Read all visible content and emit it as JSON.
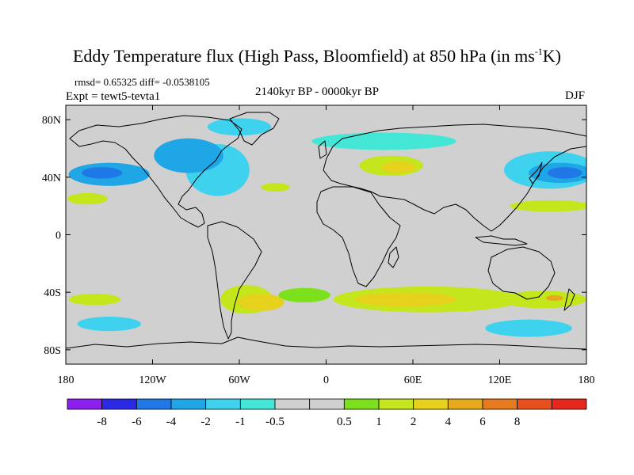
{
  "header": {
    "title_main": "Eddy Temperature flux (High Pass, Bloomfield) at 850 hPa (in ms",
    "title_sup": "-1",
    "title_end": "K)",
    "stats": "rmsd= 0.65325 diff= -0.0538105",
    "experiment": "Expt = tewt5-tevta1",
    "period": "2140kyr BP - 0000kyr BP",
    "season": "DJF"
  },
  "axes": {
    "lat_labels": [
      "80N",
      "40N",
      "0",
      "40S",
      "80S"
    ],
    "lat_values": [
      80,
      40,
      0,
      -40,
      -80
    ],
    "lon_labels": [
      "180",
      "120W",
      "60W",
      "0",
      "60E",
      "120E",
      "180"
    ],
    "lon_values": [
      -180,
      -120,
      -60,
      0,
      60,
      120,
      180
    ]
  },
  "colorbar": {
    "colors": [
      "#8c1ff0",
      "#2a2ae6",
      "#1f78e6",
      "#1fa6e6",
      "#3ed2ee",
      "#44e6d6",
      "#d0d0d0",
      "#d0d0d0",
      "#7ce11c",
      "#c3e61c",
      "#e6d21c",
      "#e6aa1c",
      "#e67a1c",
      "#e6501c",
      "#e6281c"
    ],
    "labels": [
      "-8",
      "-6",
      "-4",
      "-2",
      "-1",
      "-0.5",
      "0.5",
      "1",
      "2",
      "4",
      "6",
      "8"
    ],
    "neutral_color": "#d0d0d0"
  },
  "field_regions": [
    {
      "level": 0.5,
      "lon": -15,
      "lat": -42,
      "rlon": 18,
      "rlat": 5
    },
    {
      "level": -2,
      "lon": -150,
      "lat": 42,
      "rlon": 28,
      "rlat": 8
    },
    {
      "level": -4,
      "lon": -155,
      "lat": 43,
      "rlon": 14,
      "rlat": 4
    },
    {
      "level": 1,
      "lon": -165,
      "lat": 25,
      "rlon": 14,
      "rlat": 4
    },
    {
      "level": -1,
      "lon": -75,
      "lat": 45,
      "rlon": 22,
      "rlat": 18
    },
    {
      "level": -2,
      "lon": -95,
      "lat": 55,
      "rlon": 24,
      "rlat": 12
    },
    {
      "level": -1,
      "lon": -60,
      "lat": 75,
      "rlon": 22,
      "rlat": 6
    },
    {
      "level": 1,
      "lon": -35,
      "lat": 33,
      "rlon": 10,
      "rlat": 3
    },
    {
      "level": -0.5,
      "lon": 40,
      "lat": 65,
      "rlon": 50,
      "rlat": 6
    },
    {
      "level": 1,
      "lon": 45,
      "lat": 48,
      "rlon": 22,
      "rlat": 7
    },
    {
      "level": 2,
      "lon": 50,
      "lat": 47,
      "rlon": 12,
      "rlat": 4
    },
    {
      "level": -1,
      "lon": 155,
      "lat": 45,
      "rlon": 32,
      "rlat": 13
    },
    {
      "level": -2,
      "lon": 162,
      "lat": 43,
      "rlon": 22,
      "rlat": 7
    },
    {
      "level": -4,
      "lon": 165,
      "lat": 43,
      "rlon": 12,
      "rlat": 4
    },
    {
      "level": 1,
      "lon": 155,
      "lat": 20,
      "rlon": 28,
      "rlat": 4
    },
    {
      "level": 1,
      "lon": -55,
      "lat": -45,
      "rlon": 18,
      "rlat": 10
    },
    {
      "level": 2,
      "lon": -45,
      "lat": -47,
      "rlon": 16,
      "rlat": 6
    },
    {
      "level": 1,
      "lon": 70,
      "lat": -45,
      "rlon": 65,
      "rlat": 9
    },
    {
      "level": 2,
      "lon": 55,
      "lat": -45,
      "rlon": 35,
      "rlat": 5
    },
    {
      "level": 1,
      "lon": 150,
      "lat": -45,
      "rlon": 30,
      "rlat": 6
    },
    {
      "level": 4,
      "lon": 158,
      "lat": -44,
      "rlon": 6,
      "rlat": 2
    },
    {
      "level": 1,
      "lon": -160,
      "lat": -45,
      "rlon": 18,
      "rlat": 4
    },
    {
      "level": -1,
      "lon": -150,
      "lat": -62,
      "rlon": 22,
      "rlat": 5
    },
    {
      "level": -1,
      "lon": 140,
      "lat": -65,
      "rlon": 30,
      "rlat": 6
    }
  ]
}
